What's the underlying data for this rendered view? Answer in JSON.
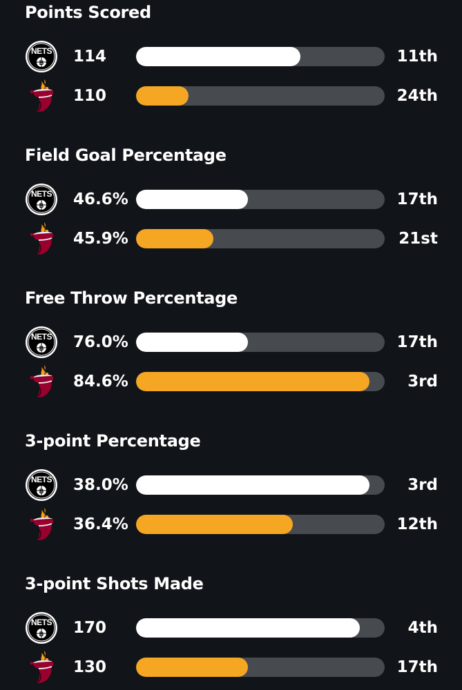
{
  "colors": {
    "background": "#111418",
    "track": "#474b50",
    "nets_bar": "#ffffff",
    "heat_bar": "#f5a623"
  },
  "teams": {
    "nets": {
      "logo_text": "NETS",
      "logo_icon": "brooklyn-nets-logo-icon"
    },
    "heat": {
      "logo_icon": "miami-heat-logo-icon"
    }
  },
  "stats": [
    {
      "title": "Points Scored",
      "nets": {
        "value": "114",
        "rank": "11th",
        "bar_fill": 0.66
      },
      "heat": {
        "value": "110",
        "rank": "24th",
        "bar_fill": 0.21
      }
    },
    {
      "title": "Field Goal Percentage",
      "nets": {
        "value": "46.6%",
        "rank": "17th",
        "bar_fill": 0.45
      },
      "heat": {
        "value": "45.9%",
        "rank": "21st",
        "bar_fill": 0.31
      }
    },
    {
      "title": "Free Throw Percentage",
      "nets": {
        "value": "76.0%",
        "rank": "17th",
        "bar_fill": 0.45
      },
      "heat": {
        "value": "84.6%",
        "rank": "3rd",
        "bar_fill": 0.94
      }
    },
    {
      "title": "3-point Percentage",
      "nets": {
        "value": "38.0%",
        "rank": "3rd",
        "bar_fill": 0.94
      },
      "heat": {
        "value": "36.4%",
        "rank": "12th",
        "bar_fill": 0.63
      }
    },
    {
      "title": "3-point Shots Made",
      "nets": {
        "value": "170",
        "rank": "4th",
        "bar_fill": 0.9
      },
      "heat": {
        "value": "130",
        "rank": "17th",
        "bar_fill": 0.45
      }
    }
  ]
}
